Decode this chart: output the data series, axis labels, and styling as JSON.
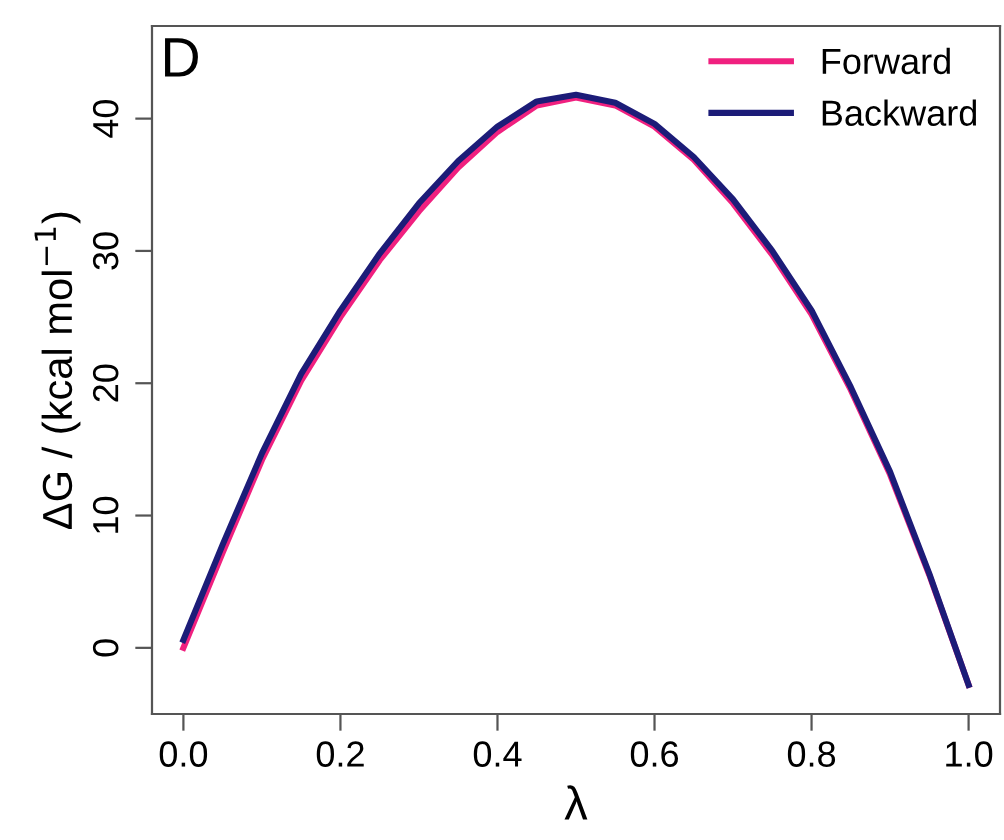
{
  "chart_data": {
    "type": "line",
    "xlabel": "λ",
    "ylabel": "ΔG / (kcal mol$^{−1}$)",
    "annotations": [
      "D"
    ],
    "x": [
      0,
      0.05,
      0.1,
      0.15,
      0.2,
      0.25,
      0.3,
      0.35,
      0.4,
      0.45,
      0.5,
      0.55,
      0.6,
      0.65,
      0.7,
      0.75,
      0.8,
      0.85,
      0.9,
      0.95,
      1.0
    ],
    "series": [
      {
        "name": "Forward",
        "color": "#f0207f",
        "values": [
          0.0,
          7.2,
          14.2,
          20.2,
          25.0,
          29.3,
          33.0,
          36.3,
          39.0,
          41.0,
          41.6,
          41.0,
          39.4,
          36.9,
          33.6,
          29.7,
          25.2,
          19.5,
          13.1,
          5.5,
          -2.8
        ]
      },
      {
        "name": "Backward",
        "color": "#1c1c78",
        "values": [
          0.6,
          7.8,
          14.7,
          20.7,
          25.5,
          29.8,
          33.6,
          36.8,
          39.4,
          41.3,
          41.8,
          41.2,
          39.6,
          37.1,
          33.9,
          30.0,
          25.5,
          19.7,
          13.3,
          5.6,
          -2.8
        ]
      }
    ],
    "xlim": [
      -0.04,
      1.04
    ],
    "ylim": [
      -5,
      47
    ],
    "xticks": [
      {
        "value": 0,
        "label": "0.0"
      },
      0.2,
      0.4,
      0.6,
      0.8,
      {
        "value": 1,
        "label": "1.0"
      }
    ],
    "yticks": [
      0,
      10,
      20,
      30,
      40
    ],
    "grid": false,
    "legend": "top right",
    "marker": "none",
    "line_style": "solid"
  }
}
